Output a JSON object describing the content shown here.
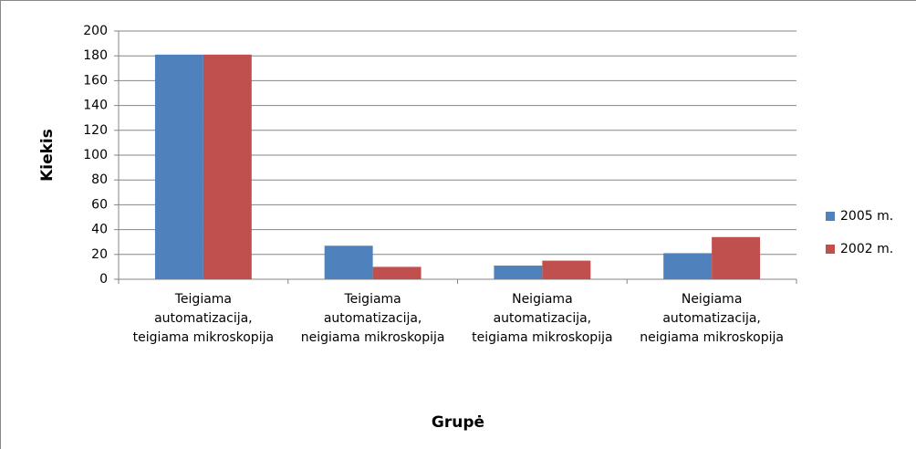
{
  "chart_data": {
    "type": "bar",
    "x_label": "Grupė",
    "y_label": "Kiekis",
    "categories": [
      "Teigiama automatizacija, teigiama mikroskopija",
      "Teigiama automatizacija, neigiama mikroskopija",
      "Neigiama automatizacija, teigiama mikroskopija",
      "Neigiama automatizacija, neigiama mikroskopija"
    ],
    "series": [
      {
        "name": "2005 m.",
        "color": "#4f81bd",
        "values": [
          181,
          27,
          11,
          21
        ]
      },
      {
        "name": "2002 m.",
        "color": "#c0504d",
        "values": [
          181,
          10,
          15,
          34
        ]
      }
    ],
    "ylim": [
      0,
      200
    ],
    "yticks": [
      0,
      20,
      40,
      60,
      80,
      100,
      120,
      140,
      160,
      180,
      200
    ],
    "grid": true,
    "legend": "right"
  }
}
